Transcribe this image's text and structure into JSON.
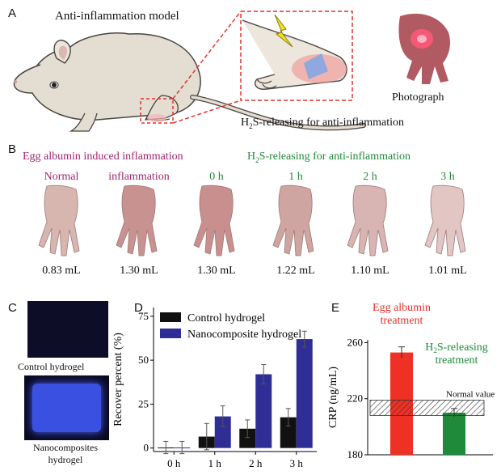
{
  "panel_a": {
    "letter": "A",
    "title": "Anti-inflammation model",
    "photo_caption": "Photograph",
    "caption_prefix": "H",
    "caption_sub": "2",
    "caption_rest": "S-releasing for anti-inflammation"
  },
  "panel_b": {
    "letter": "B",
    "header_left": "Egg albumin induced inflammation",
    "header_right_prefix": "H",
    "header_right_sub": "2",
    "header_right_rest": "S-releasing  for anti-inflammation",
    "paws": [
      {
        "label": "Normal",
        "volume": "0.83 mL",
        "color": "purple"
      },
      {
        "label": "inflammation",
        "volume": "1.30 mL",
        "color": "purple"
      },
      {
        "label": "0 h",
        "volume": "1.30 mL",
        "color": "green"
      },
      {
        "label": "1 h",
        "volume": "1.22 mL",
        "color": "green"
      },
      {
        "label": "2 h",
        "volume": "1.10 mL",
        "color": "green"
      },
      {
        "label": "3 h",
        "volume": "1.01 mL",
        "color": "green"
      }
    ]
  },
  "panel_c": {
    "letter": "C",
    "label1": "Control hydrogel",
    "label2_line1": "Nanocomposites",
    "label2_line2": "hydrogel"
  },
  "panel_d": {
    "letter": "D"
  },
  "panel_e": {
    "letter": "E",
    "normal_label": "Normal value"
  },
  "chart_data": [
    {
      "type": "bar",
      "categories": [
        "0 h",
        "1 h",
        "2 h",
        "3 h"
      ],
      "series": [
        {
          "name": "Control hydrogel",
          "values": [
            0.3,
            6.5,
            11,
            17.5
          ],
          "errors": [
            3.5,
            7.5,
            5,
            5
          ],
          "color": "#111111"
        },
        {
          "name": "Nanocomposite hydrogel",
          "values": [
            0.3,
            18,
            42,
            62
          ],
          "errors": [
            3.5,
            6,
            5.5,
            4.5
          ],
          "color": "#2e2e96"
        }
      ],
      "ylabel": "Recover percent (%)",
      "yticks": [
        0,
        25,
        50,
        75
      ],
      "ylim": [
        -2,
        80
      ]
    },
    {
      "type": "bar",
      "categories": [
        "Egg albumin treatment",
        "H2S-releasing treatment"
      ],
      "category_labels": [
        {
          "line1": "Egg albumin",
          "line2": "treatment",
          "color": "#e8312a"
        },
        {
          "line1_prefix": "H",
          "line1_sub": "2",
          "line1_rest": "S-releasing",
          "line2": "treatment",
          "color": "#1f8a3a"
        }
      ],
      "values": [
        253,
        210
      ],
      "errors": [
        4,
        3
      ],
      "bar_colors": [
        "#ee3124",
        "#1f8a3a"
      ],
      "normal_range": [
        208,
        219
      ],
      "ylabel": "CRP (ng/mL)",
      "yticks": [
        180,
        220,
        260
      ],
      "ylim": [
        180,
        262
      ]
    }
  ]
}
